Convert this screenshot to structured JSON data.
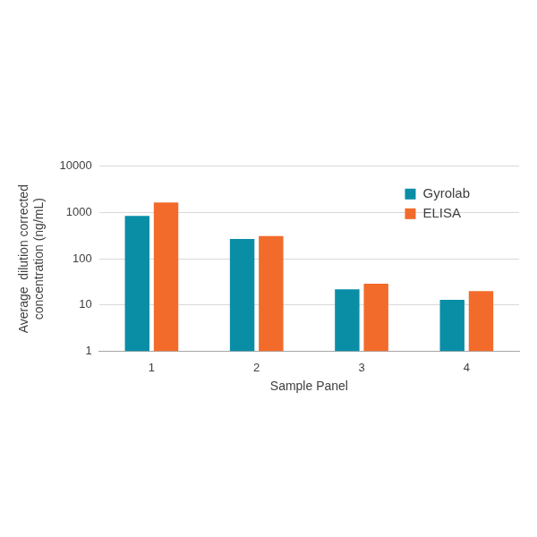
{
  "chart_data": {
    "type": "bar",
    "x_label": "Sample Panel",
    "y_label": [
      "Average  dilution corrected",
      "concentration (ng/mL)"
    ],
    "categories": [
      "1",
      "2",
      "3",
      "4"
    ],
    "series": [
      {
        "name": "Gyrolab",
        "color": "#0a8ea6",
        "values": [
          850,
          270,
          22,
          13
        ]
      },
      {
        "name": "ELISA",
        "color": "#f26b2b",
        "values": [
          1650,
          310,
          29,
          20
        ]
      }
    ],
    "log": "y",
    "ylim": [
      1,
      10000
    ],
    "yticks": [
      1,
      10,
      100,
      1000,
      10000
    ],
    "grid": true,
    "legend": "upper right"
  }
}
